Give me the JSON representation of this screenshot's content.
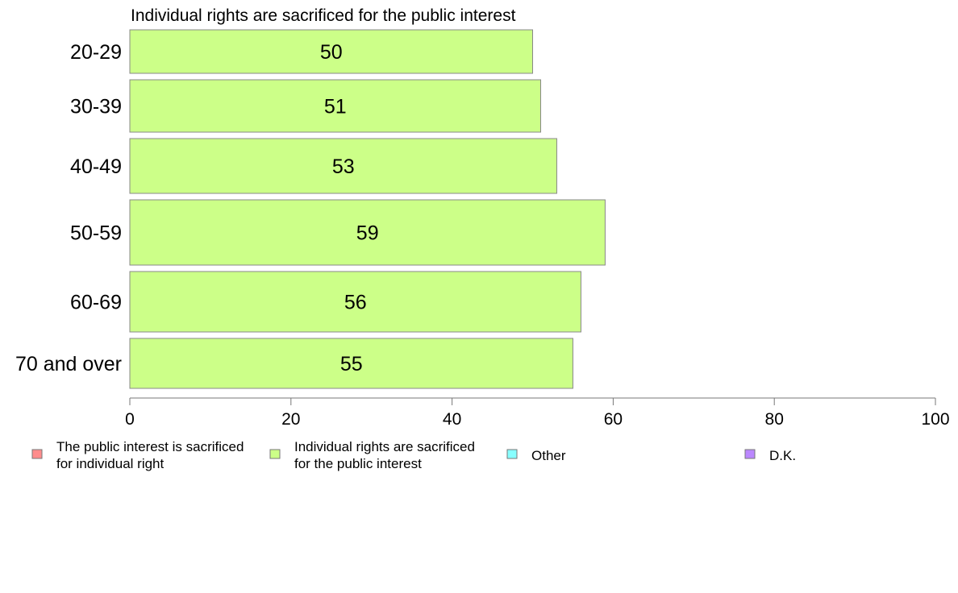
{
  "chart_data": {
    "type": "bar",
    "orientation": "horizontal",
    "title": "Individual rights are sacrificed for the public interest",
    "xlabel": "",
    "ylabel": "",
    "xlim": [
      0,
      100
    ],
    "x_ticks": [
      "0",
      "20",
      "40",
      "60",
      "80",
      "100"
    ],
    "categories": [
      "20-29",
      "30-39",
      "40-49",
      "50-59",
      "60-69",
      "70 and over"
    ],
    "series": [
      {
        "name": "Individual rights are sacrificed for the public interest",
        "color": "#ccff88",
        "values": [
          50,
          51,
          53,
          59,
          56,
          55
        ],
        "labels": [
          "50",
          "51",
          "53",
          "59",
          "56",
          "55"
        ]
      }
    ],
    "grid": false,
    "legend_position": "bottom",
    "legend": [
      {
        "line1": "The public interest is sacrificed",
        "line2": "for individual right",
        "color": "#ff8c8c"
      },
      {
        "line1": "Individual rights are sacrificed",
        "line2": "for the public interest",
        "color": "#ccff88"
      },
      {
        "line1": "Other",
        "line2": "",
        "color": "#88ffff"
      },
      {
        "line1": "D.K.",
        "line2": "",
        "color": "#bb88ff"
      }
    ]
  }
}
